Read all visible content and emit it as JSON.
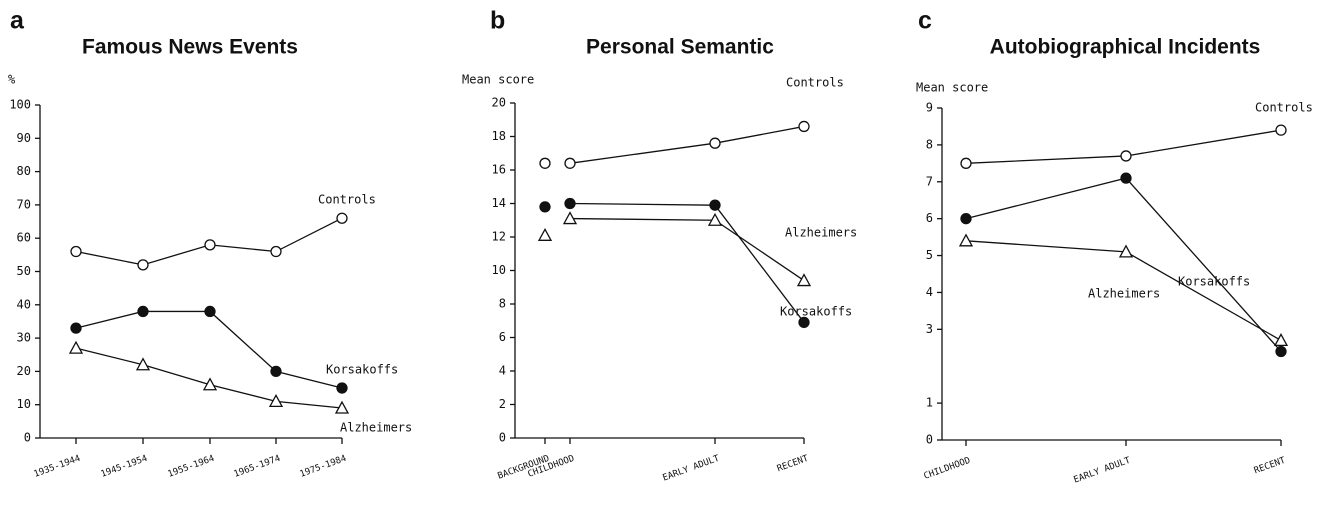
{
  "chart_data": [
    {
      "type": "line",
      "panel_label": "a",
      "title": "Famous News Events",
      "ylabel": "%",
      "categories": [
        "1935-1944",
        "1945-1954",
        "1955-1964",
        "1965-1974",
        "1975-1984"
      ],
      "ylim": [
        0,
        100
      ],
      "yticks": [
        0,
        10,
        20,
        30,
        40,
        50,
        60,
        70,
        80,
        90,
        100
      ],
      "series": [
        {
          "name": "Controls",
          "marker": "open-circle",
          "color": "#111111",
          "values": [
            56,
            52,
            58,
            56,
            66
          ]
        },
        {
          "name": "Korsakoffs",
          "marker": "filled-circle",
          "color": "#111111",
          "values": [
            33,
            38,
            38,
            20,
            15
          ]
        },
        {
          "name": "Alzheimers",
          "marker": "open-triangle",
          "color": "#111111",
          "values": [
            27,
            22,
            16,
            11,
            9
          ]
        }
      ]
    },
    {
      "type": "line",
      "panel_label": "b",
      "title": "Personal Semantic",
      "ylabel": "Mean score",
      "background_category": "BACKGROUND",
      "categories": [
        "CHILDHOOD",
        "EARLY ADULT",
        "RECENT"
      ],
      "ylim": [
        0,
        20
      ],
      "yticks": [
        0,
        2,
        4,
        6,
        8,
        10,
        12,
        14,
        16,
        18,
        20
      ],
      "series": [
        {
          "name": "Controls",
          "marker": "open-circle",
          "color": "#111111",
          "background_value": 16.4,
          "values": [
            16.4,
            17.6,
            18.6
          ]
        },
        {
          "name": "Korsakoffs",
          "marker": "filled-circle",
          "color": "#111111",
          "background_value": 13.8,
          "values": [
            14.0,
            13.9,
            6.9
          ]
        },
        {
          "name": "Alzheimers",
          "marker": "open-triangle",
          "color": "#111111",
          "background_value": 12.1,
          "values": [
            13.1,
            13.0,
            9.4
          ]
        }
      ]
    },
    {
      "type": "line",
      "panel_label": "c",
      "title": "Autobiographical Incidents",
      "ylabel": "Mean score",
      "categories": [
        "CHILDHOOD",
        "EARLY ADULT",
        "RECENT"
      ],
      "ylim": [
        0,
        9
      ],
      "yticks": [
        0,
        1,
        3,
        4,
        5,
        6,
        7,
        8,
        9
      ],
      "series": [
        {
          "name": "Controls",
          "marker": "open-circle",
          "color": "#111111",
          "values": [
            7.5,
            7.7,
            8.4
          ]
        },
        {
          "name": "Korsakoffs",
          "marker": "filled-circle",
          "color": "#111111",
          "values": [
            6.0,
            7.1,
            2.4
          ]
        },
        {
          "name": "Alzheimers",
          "marker": "open-triangle",
          "color": "#111111",
          "values": [
            5.4,
            5.1,
            2.7
          ]
        }
      ]
    }
  ]
}
